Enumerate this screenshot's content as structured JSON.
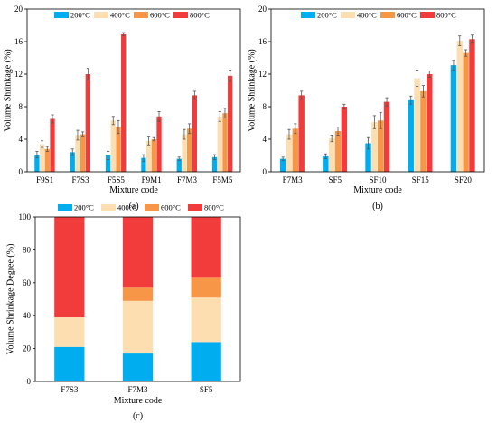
{
  "colors": {
    "200": "#00AEEF",
    "400": "#FDDEB0",
    "600": "#F79646",
    "800": "#F23C3C",
    "err": "#555555"
  },
  "chart_data": [
    {
      "id": "a",
      "type": "bar",
      "subplot_label": "(a)",
      "xlabel": "Mixture code",
      "ylabel": "Volume Shrinkage (%)",
      "ylim": [
        0,
        20
      ],
      "yticks": [
        0,
        4,
        8,
        12,
        16,
        20
      ],
      "categories": [
        "F9S1",
        "F7S3",
        "F5S5",
        "F9M1",
        "F7M3",
        "F5M5"
      ],
      "legend": [
        "200°C",
        "400°C",
        "600°C",
        "800°C"
      ],
      "series": [
        {
          "name": "200°C",
          "values": [
            2.1,
            2.4,
            2.0,
            1.7,
            1.6,
            1.8
          ],
          "errors": [
            0.4,
            0.4,
            0.5,
            0.4,
            0.2,
            0.3
          ]
        },
        {
          "name": "400°C",
          "values": [
            3.4,
            4.5,
            6.3,
            3.8,
            4.6,
            6.8
          ],
          "errors": [
            0.4,
            0.6,
            0.5,
            0.5,
            0.6,
            0.6
          ]
        },
        {
          "name": "600°C",
          "values": [
            2.8,
            4.6,
            5.5,
            4.0,
            5.3,
            7.2
          ],
          "errors": [
            0.3,
            0.3,
            0.8,
            0.2,
            0.6,
            0.6
          ]
        },
        {
          "name": "800°C",
          "values": [
            6.5,
            12.0,
            16.9,
            6.8,
            9.4,
            11.8
          ],
          "errors": [
            0.5,
            0.7,
            0.2,
            0.6,
            0.5,
            0.7
          ]
        }
      ]
    },
    {
      "id": "b",
      "type": "bar",
      "subplot_label": "(b)",
      "xlabel": "Mixture code",
      "ylabel": "Volume Shrinkage (%)",
      "ylim": [
        0,
        20
      ],
      "yticks": [
        0,
        4,
        8,
        12,
        16,
        20
      ],
      "categories": [
        "F7M3",
        "SF5",
        "SF10",
        "SF15",
        "SF20"
      ],
      "legend": [
        "200°C",
        "400°C",
        "600°C",
        "800°C"
      ],
      "series": [
        {
          "name": "200°C",
          "values": [
            1.6,
            1.9,
            3.5,
            8.8,
            13.1
          ],
          "errors": [
            0.2,
            0.3,
            0.7,
            0.5,
            0.6
          ]
        },
        {
          "name": "400°C",
          "values": [
            4.6,
            4.1,
            6.1,
            11.5,
            16.1
          ],
          "errors": [
            0.6,
            0.4,
            0.8,
            1.0,
            0.6
          ]
        },
        {
          "name": "600°C",
          "values": [
            5.3,
            5.0,
            6.3,
            9.9,
            14.6
          ],
          "errors": [
            0.6,
            0.5,
            1.0,
            0.7,
            0.4
          ]
        },
        {
          "name": "800°C",
          "values": [
            9.4,
            8.0,
            8.6,
            12.0,
            16.3
          ],
          "errors": [
            0.5,
            0.3,
            0.5,
            0.4,
            0.5
          ]
        }
      ]
    },
    {
      "id": "c",
      "type": "bar",
      "stacked": true,
      "subplot_label": "(c)",
      "xlabel": "Mixture code",
      "ylabel": "Volume Shrinkage Degree (%)",
      "ylim": [
        0,
        100
      ],
      "yticks": [
        0,
        20,
        40,
        60,
        80,
        100
      ],
      "categories": [
        "F7S3",
        "F7M3",
        "SF5"
      ],
      "legend": [
        "200°C",
        "400°C",
        "600°C",
        "800°C"
      ],
      "series": [
        {
          "name": "200°C",
          "values": [
            21,
            17,
            24
          ]
        },
        {
          "name": "400°C",
          "values": [
            18,
            32,
            27
          ]
        },
        {
          "name": "600°C",
          "values": [
            0,
            8,
            12
          ]
        },
        {
          "name": "800°C",
          "values": [
            61,
            43,
            37
          ]
        }
      ]
    }
  ]
}
